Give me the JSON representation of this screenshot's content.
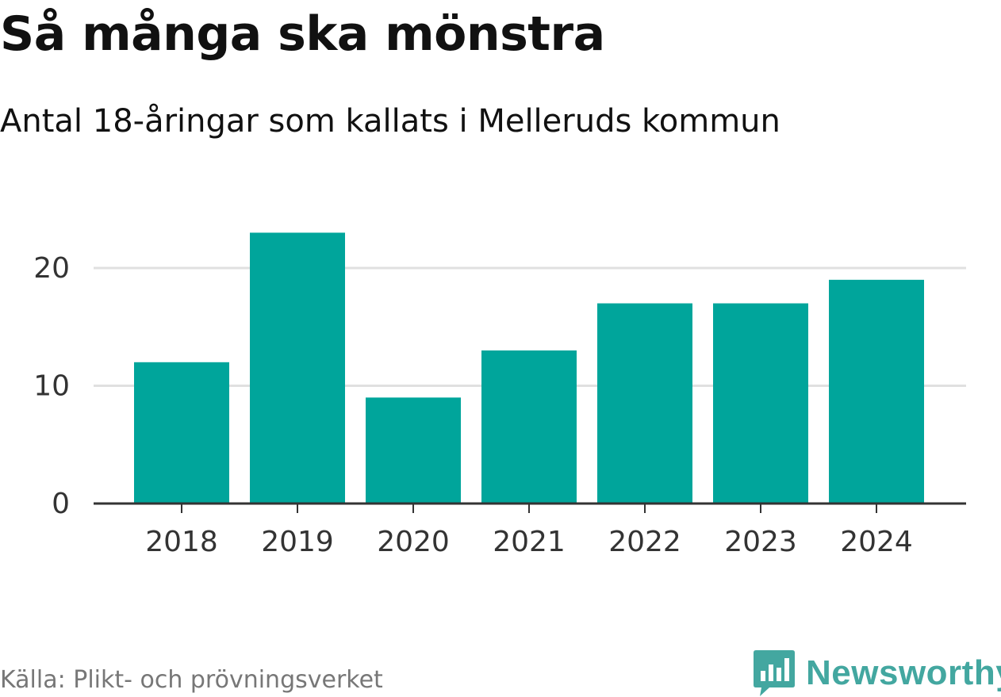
{
  "header": {
    "title": "Så många ska mönstra",
    "subtitle": "Antal 18-åringar som kallats i Melleruds kommun"
  },
  "footer": {
    "source": "Källa: Plikt- och prövningsverket",
    "brand_name": "Newsworthy",
    "brand_icon": "bar-chart-speech-bubble-icon"
  },
  "colors": {
    "bar": "#00a59b",
    "grid": "#e0e0e0",
    "axis": "#333333",
    "brand": "#43a7a0"
  },
  "chart_data": {
    "type": "bar",
    "title": "Så många ska mönstra",
    "subtitle": "Antal 18-åringar som kallats i Melleruds kommun",
    "categories": [
      "2018",
      "2019",
      "2020",
      "2021",
      "2022",
      "2023",
      "2024"
    ],
    "values": [
      12,
      23,
      9,
      13,
      17,
      17,
      19
    ],
    "xlabel": "",
    "ylabel": "",
    "ylim": [
      0,
      23
    ],
    "yticks": [
      0,
      10,
      20
    ],
    "grid": true,
    "legend": "none"
  }
}
